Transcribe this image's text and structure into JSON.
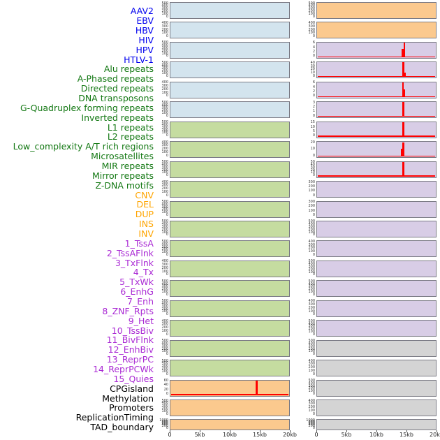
{
  "chart_data": {
    "type": "area",
    "title": "",
    "layout": "small-multiples, 2 columns x 22 rows, column-major order; one panel per genomic feature",
    "x_label_ticks": [
      "0",
      "5kb",
      "10kb",
      "15kb",
      "20kb"
    ],
    "x_range_kb": [
      0,
      20
    ],
    "spike_position_kb": 14.5,
    "red_color": "#ff0000",
    "border_color": "#7b7b85",
    "groups": {
      "virus": {
        "label_color": "#0000ee",
        "bg": "#d3e4ee"
      },
      "repeat": {
        "label_color": "#137813",
        "bg": "#c5dca0"
      },
      "sv": {
        "label_color": "#ffa500",
        "bg": "#fbc98e"
      },
      "chromatin": {
        "label_color": "#aa2ad4",
        "bg": "#d8cde6"
      },
      "other": {
        "label_color": "#000000",
        "bg": "#d4d4d4"
      }
    },
    "features": [
      {
        "label": "AAV2",
        "group": "virus",
        "yticks": [
          "500",
          "400",
          "300",
          "200",
          "100",
          "0"
        ],
        "box_max": 500,
        "red": null
      },
      {
        "label": "EBV",
        "group": "virus",
        "yticks": [
          "400",
          "300",
          "200",
          "100",
          "0"
        ],
        "box_max": 400,
        "red": null
      },
      {
        "label": "HBV",
        "group": "virus",
        "yticks": [
          "500",
          "400",
          "300",
          "200",
          "100",
          "0"
        ],
        "box_max": 500,
        "red": null
      },
      {
        "label": "HIV",
        "group": "virus",
        "yticks": [
          "500",
          "400",
          "300",
          "200",
          "100",
          "0"
        ],
        "box_max": 500,
        "red": null
      },
      {
        "label": "HPV",
        "group": "virus",
        "yticks": [
          "400",
          "300",
          "200",
          "100",
          "0"
        ],
        "box_max": 400,
        "red": null
      },
      {
        "label": "HTLV-1",
        "group": "virus",
        "yticks": [
          "500",
          "400",
          "300",
          "200",
          "100",
          "0"
        ],
        "box_max": 500,
        "red": null
      },
      {
        "label": "Alu repeats",
        "group": "repeat",
        "yticks": [
          "500",
          "400",
          "300",
          "200",
          "100",
          "0"
        ],
        "box_max": 500,
        "red": null
      },
      {
        "label": "A-Phased repeats",
        "group": "repeat",
        "yticks": [
          "400",
          "300",
          "200",
          "100",
          "0"
        ],
        "box_max": 400,
        "red": null
      },
      {
        "label": "Directed repeats",
        "group": "repeat",
        "yticks": [
          "500",
          "400",
          "300",
          "200",
          "100",
          "0"
        ],
        "box_max": 500,
        "red": null
      },
      {
        "label": "DNA transposons",
        "group": "repeat",
        "yticks": [
          "400",
          "300",
          "200",
          "100",
          "0"
        ],
        "box_max": 400,
        "red": null
      },
      {
        "label": "G-Quadruplex forming repeats",
        "group": "repeat",
        "yticks": [
          "500",
          "400",
          "300",
          "200",
          "100",
          "0"
        ],
        "box_max": 500,
        "red": null
      },
      {
        "label": "Inverted repeats",
        "group": "repeat",
        "yticks": [
          "500",
          "400",
          "300",
          "200",
          "100",
          "0"
        ],
        "box_max": 500,
        "red": null
      },
      {
        "label": "L1 repeats",
        "group": "repeat",
        "yticks": [
          "500",
          "400",
          "300",
          "200",
          "100",
          "0"
        ],
        "box_max": 500,
        "red": null
      },
      {
        "label": "L2 repeats",
        "group": "repeat",
        "yticks": [
          "400",
          "300",
          "200",
          "100",
          "0"
        ],
        "box_max": 400,
        "red": null
      },
      {
        "label": "Low_complexity A/T rich regions",
        "group": "repeat",
        "yticks": [
          "500",
          "400",
          "300",
          "200",
          "100",
          "0"
        ],
        "box_max": 500,
        "red": null
      },
      {
        "label": "Microsatellites",
        "group": "repeat",
        "yticks": [
          "500",
          "400",
          "300",
          "200",
          "100",
          "0"
        ],
        "box_max": 500,
        "red": null
      },
      {
        "label": "MIR repeats",
        "group": "repeat",
        "yticks": [
          "400",
          "300",
          "200",
          "100",
          "0"
        ],
        "box_max": 400,
        "red": null
      },
      {
        "label": "Mirror repeats",
        "group": "repeat",
        "yticks": [
          "500",
          "400",
          "300",
          "200",
          "100",
          "0"
        ],
        "box_max": 500,
        "red": null
      },
      {
        "label": "Z-DNA motifs",
        "group": "repeat",
        "yticks": [
          "500",
          "400",
          "300",
          "200",
          "100",
          "0"
        ],
        "box_max": 500,
        "red": null
      },
      {
        "label": "CNV",
        "group": "sv",
        "yticks": [
          "60",
          "40",
          "20",
          "0"
        ],
        "box_max": 62,
        "red": {
          "baseline_value": 2,
          "bars": [
            {
              "x_kb": 14.35,
              "w_kb": 0.35,
              "value": 59
            }
          ]
        }
      },
      {
        "label": "DEL",
        "group": "sv",
        "yticks": [
          "500",
          "400",
          "300",
          "200",
          "100",
          "0"
        ],
        "box_max": 500,
        "red": null
      },
      {
        "label": "DUP",
        "group": "sv",
        "yticks": [
          "1000",
          "800",
          "600",
          "400",
          "200",
          "0"
        ],
        "box_max": 1000,
        "red": null
      },
      {
        "label": "INS",
        "group": "sv",
        "yticks": [
          "500",
          "400",
          "300",
          "200",
          "100",
          "0"
        ],
        "box_max": 500,
        "red": null
      },
      {
        "label": "INV",
        "group": "sv",
        "yticks": [
          "400",
          "300",
          "200",
          "100",
          "0"
        ],
        "box_max": 400,
        "red": null
      },
      {
        "label": "1_TssA",
        "group": "chromatin",
        "yticks": [
          "6",
          "4",
          "2",
          "0"
        ],
        "box_max": 6.4,
        "red": {
          "baseline_value": 0.12,
          "bars": [
            {
              "x_kb": 14.25,
              "w_kb": 0.35,
              "value": 3.6
            },
            {
              "x_kb": 14.55,
              "w_kb": 0.25,
              "value": 6.1
            }
          ]
        }
      },
      {
        "label": "2_TssAFlnk",
        "group": "chromatin",
        "yticks": [
          "40",
          "30",
          "20",
          "10",
          "0"
        ],
        "box_max": 43,
        "red": {
          "baseline_value": 0.9,
          "bars": [
            {
              "x_kb": 14.3,
              "w_kb": 0.35,
              "value": 41
            },
            {
              "x_kb": 14.65,
              "w_kb": 0.2,
              "value": 13
            }
          ]
        }
      },
      {
        "label": "3_TxFlnk",
        "group": "chromatin",
        "yticks": [
          "6",
          "4",
          "2",
          "0"
        ],
        "box_max": 6.6,
        "red": {
          "baseline_value": 0.15,
          "bars": [
            {
              "x_kb": 14.3,
              "w_kb": 0.3,
              "value": 6.3
            },
            {
              "x_kb": 14.6,
              "w_kb": 0.2,
              "value": 3.2
            }
          ]
        }
      },
      {
        "label": "4_Tx",
        "group": "chromatin",
        "yticks": [
          "3",
          "2",
          "1",
          "0"
        ],
        "box_max": 3.25,
        "red": {
          "baseline_value": 0.08,
          "bars": [
            {
              "x_kb": 14.35,
              "w_kb": 0.3,
              "value": 3.1
            }
          ]
        }
      },
      {
        "label": "5_TxWk",
        "group": "chromatin",
        "yticks": [
          "15",
          "10",
          "5",
          "0"
        ],
        "box_max": 16.5,
        "red": {
          "baseline_value": 0.5,
          "bars": [
            {
              "x_kb": 14.35,
              "w_kb": 0.35,
              "value": 15.9
            }
          ]
        }
      },
      {
        "label": "6_EnhG",
        "group": "chromatin",
        "yticks": [
          "20",
          "10",
          "0"
        ],
        "box_max": 24,
        "red": {
          "baseline_value": 0.3,
          "bars": [
            {
              "x_kb": 14.15,
              "w_kb": 0.2,
              "value": 12
            },
            {
              "x_kb": 14.4,
              "w_kb": 0.3,
              "value": 22.5
            }
          ]
        }
      },
      {
        "label": "7_Enh",
        "group": "chromatin",
        "yticks": [
          "50",
          "40",
          "30",
          "20",
          "10",
          "0"
        ],
        "box_max": 55,
        "red": {
          "baseline_value": 0.6,
          "bars": [
            {
              "x_kb": 14.35,
              "w_kb": 0.35,
              "value": 52.5
            }
          ]
        }
      },
      {
        "label": "8_ZNF_Rpts",
        "group": "chromatin",
        "yticks": [
          "300",
          "200",
          "100",
          "0"
        ],
        "box_max": 300,
        "red": null
      },
      {
        "label": "9_Het",
        "group": "chromatin",
        "yticks": [
          "300",
          "200",
          "100",
          "0"
        ],
        "box_max": 300,
        "red": null
      },
      {
        "label": "10_TssBiv",
        "group": "chromatin",
        "yticks": [
          "500",
          "400",
          "300",
          "200",
          "100",
          "0"
        ],
        "box_max": 500,
        "red": null
      },
      {
        "label": "11_BivFlnk",
        "group": "chromatin",
        "yticks": [
          "400",
          "300",
          "200",
          "100",
          "0"
        ],
        "box_max": 400,
        "red": null
      },
      {
        "label": "12_EnhBiv",
        "group": "chromatin",
        "yticks": [
          "500",
          "400",
          "300",
          "200",
          "100",
          "0"
        ],
        "box_max": 500,
        "red": null
      },
      {
        "label": "13_ReprPC",
        "group": "chromatin",
        "yticks": [
          "500",
          "400",
          "300",
          "200",
          "100",
          "0"
        ],
        "box_max": 500,
        "red": null
      },
      {
        "label": "14_ReprPCWk",
        "group": "chromatin",
        "yticks": [
          "400",
          "300",
          "200",
          "100",
          "0"
        ],
        "box_max": 400,
        "red": null
      },
      {
        "label": "15_Quies",
        "group": "chromatin",
        "yticks": [
          "500",
          "400",
          "300",
          "200",
          "100",
          "0"
        ],
        "box_max": 500,
        "red": null
      },
      {
        "label": "CPGisland",
        "group": "other",
        "yticks": [
          "500",
          "400",
          "300",
          "200",
          "100",
          "0"
        ],
        "box_max": 500,
        "red": null
      },
      {
        "label": "Methylation",
        "group": "other",
        "yticks": [
          "400",
          "300",
          "200",
          "100",
          "0"
        ],
        "box_max": 400,
        "red": null
      },
      {
        "label": "Promoters",
        "group": "other",
        "yticks": [
          "500",
          "400",
          "300",
          "200",
          "100",
          "0"
        ],
        "box_max": 500,
        "red": null
      },
      {
        "label": "ReplicationTiming",
        "group": "other",
        "yticks": [
          "400",
          "300",
          "200",
          "100",
          "0"
        ],
        "box_max": 400,
        "red": null
      },
      {
        "label": "TAD_boundary",
        "group": "other",
        "yticks": [
          "1000",
          "800",
          "600",
          "400",
          "200",
          "0"
        ],
        "box_max": 1000,
        "red": null
      }
    ]
  }
}
